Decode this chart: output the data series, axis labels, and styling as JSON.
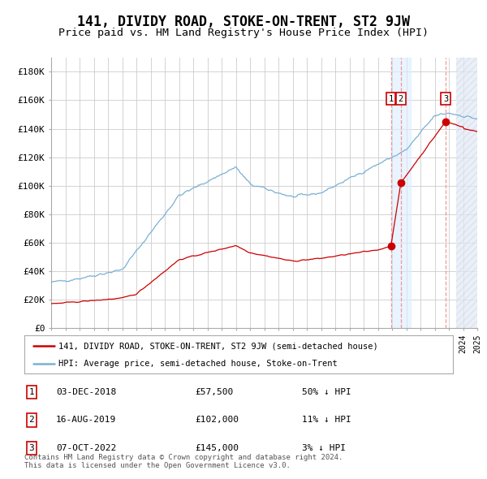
{
  "title": "141, DIVIDY ROAD, STOKE-ON-TRENT, ST2 9JW",
  "subtitle": "Price paid vs. HM Land Registry's House Price Index (HPI)",
  "title_fontsize": 12,
  "subtitle_fontsize": 9.5,
  "background_color": "#ffffff",
  "grid_color": "#cccccc",
  "hpi_color": "#7ab0d4",
  "price_color": "#cc0000",
  "xmin": 1995,
  "xmax": 2025,
  "ymin": 0,
  "ymax": 190000,
  "yticks": [
    0,
    20000,
    40000,
    60000,
    80000,
    100000,
    120000,
    140000,
    160000,
    180000
  ],
  "ytick_labels": [
    "£0",
    "£20K",
    "£40K",
    "£60K",
    "£80K",
    "£100K",
    "£120K",
    "£140K",
    "£160K",
    "£180K"
  ],
  "sales": [
    {
      "date_num": 2018.92,
      "price": 57500,
      "label": "1",
      "date_str": "03-DEC-2018",
      "pct": "50% ↓ HPI"
    },
    {
      "date_num": 2019.62,
      "price": 102000,
      "label": "2",
      "date_str": "16-AUG-2019",
      "pct": "11% ↓ HPI"
    },
    {
      "date_num": 2022.77,
      "price": 145000,
      "label": "3",
      "date_str": "07-OCT-2022",
      "pct": "3% ↓ HPI"
    }
  ],
  "legend_entries": [
    "141, DIVIDY ROAD, STOKE-ON-TRENT, ST2 9JW (semi-detached house)",
    "HPI: Average price, semi-detached house, Stoke-on-Trent"
  ],
  "footer": "Contains HM Land Registry data © Crown copyright and database right 2024.\nThis data is licensed under the Open Government Licence v3.0.",
  "sale1_date": 2018.92,
  "sale2_date": 2019.62,
  "sale3_date": 2022.77,
  "hatch_start": 2023.5,
  "blue_band_start": 2018.92,
  "blue_band_end": 2020.3
}
